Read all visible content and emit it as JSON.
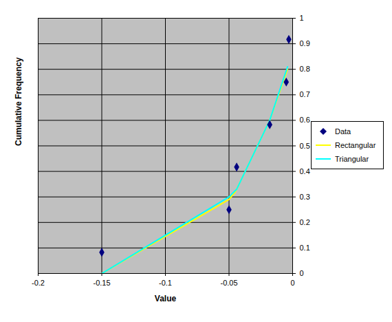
{
  "chart_data": {
    "type": "scatter",
    "x_label": "Value",
    "y_label": "Cumulative Frequency",
    "xlim": [
      -0.2,
      0
    ],
    "xticks": [
      -0.2,
      -0.15,
      -0.1,
      -0.05,
      0
    ],
    "ylim": [
      0,
      1
    ],
    "yticks": [
      0,
      0.1,
      0.2,
      0.3,
      0.4,
      0.5,
      0.6,
      0.7,
      0.8,
      0.9,
      1
    ],
    "grid": true,
    "legend": "right",
    "series": [
      {
        "name": "Data",
        "type": "scatter",
        "marker": "diamond",
        "color": "#000080",
        "x": [
          -0.15,
          -0.05,
          -0.044,
          -0.018,
          -0.005,
          -0.003
        ],
        "values": [
          0.083,
          0.25,
          0.417,
          0.583,
          0.75,
          0.917
        ]
      },
      {
        "name": "Rectangular",
        "type": "line",
        "color": "#ffff00",
        "x": [
          -0.15,
          -0.05,
          -0.045,
          -0.018,
          -0.004
        ],
        "values": [
          0,
          0.29,
          0.32,
          0.6,
          0.8
        ]
      },
      {
        "name": "Triangular",
        "type": "line",
        "color": "#00ffff",
        "x": [
          -0.15,
          -0.05,
          -0.044,
          -0.018,
          -0.004
        ],
        "values": [
          0,
          0.3,
          0.33,
          0.6,
          0.81
        ]
      }
    ]
  }
}
